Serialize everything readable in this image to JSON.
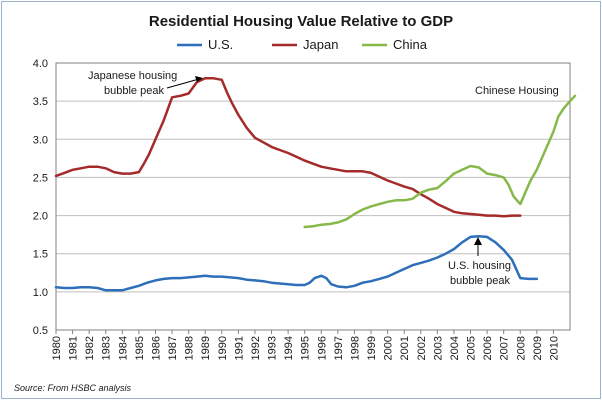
{
  "chart_data": {
    "type": "line",
    "title": "Residential Housing Value Relative to GDP",
    "xlabel": "",
    "ylabel": "",
    "xlim": [
      1980,
      2011
    ],
    "ylim": [
      0.5,
      4.0
    ],
    "x_ticks": [
      "1980",
      "1981",
      "1982",
      "1983",
      "1984",
      "1985",
      "1986",
      "1987",
      "1988",
      "1989",
      "1990",
      "1991",
      "1992",
      "1993",
      "1994",
      "1995",
      "1996",
      "1997",
      "1998",
      "1999",
      "2000",
      "2001",
      "2002",
      "2003",
      "2004",
      "2005",
      "2006",
      "2007",
      "2008",
      "2009",
      "2010"
    ],
    "y_ticks": [
      "0.5",
      "1.0",
      "1.5",
      "2.0",
      "2.5",
      "3.0",
      "3.5",
      "4.0"
    ],
    "legend_position": "top-center",
    "grid": "horizontal",
    "series": [
      {
        "name": "U.S.",
        "color": "#2e6fba",
        "points": [
          [
            1980.0,
            1.06
          ],
          [
            1980.5,
            1.05
          ],
          [
            1981.0,
            1.05
          ],
          [
            1981.5,
            1.06
          ],
          [
            1982.0,
            1.06
          ],
          [
            1982.5,
            1.05
          ],
          [
            1983.0,
            1.02
          ],
          [
            1983.5,
            1.02
          ],
          [
            1984.0,
            1.02
          ],
          [
            1984.5,
            1.05
          ],
          [
            1985.0,
            1.08
          ],
          [
            1985.5,
            1.12
          ],
          [
            1986.0,
            1.15
          ],
          [
            1986.5,
            1.17
          ],
          [
            1987.0,
            1.18
          ],
          [
            1987.5,
            1.18
          ],
          [
            1988.0,
            1.19
          ],
          [
            1988.5,
            1.2
          ],
          [
            1989.0,
            1.21
          ],
          [
            1989.5,
            1.2
          ],
          [
            1990.0,
            1.2
          ],
          [
            1990.5,
            1.19
          ],
          [
            1991.0,
            1.18
          ],
          [
            1991.5,
            1.16
          ],
          [
            1992.0,
            1.15
          ],
          [
            1992.5,
            1.14
          ],
          [
            1993.0,
            1.12
          ],
          [
            1993.5,
            1.11
          ],
          [
            1994.0,
            1.1
          ],
          [
            1994.5,
            1.09
          ],
          [
            1995.0,
            1.09
          ],
          [
            1995.3,
            1.12
          ],
          [
            1995.6,
            1.18
          ],
          [
            1996.0,
            1.21
          ],
          [
            1996.3,
            1.18
          ],
          [
            1996.6,
            1.1
          ],
          [
            1997.0,
            1.07
          ],
          [
            1997.5,
            1.06
          ],
          [
            1998.0,
            1.08
          ],
          [
            1998.5,
            1.12
          ],
          [
            1999.0,
            1.14
          ],
          [
            1999.5,
            1.17
          ],
          [
            2000.0,
            1.2
          ],
          [
            2000.5,
            1.25
          ],
          [
            2001.0,
            1.3
          ],
          [
            2001.5,
            1.35
          ],
          [
            2002.0,
            1.38
          ],
          [
            2002.5,
            1.41
          ],
          [
            2003.0,
            1.45
          ],
          [
            2003.5,
            1.5
          ],
          [
            2004.0,
            1.56
          ],
          [
            2004.5,
            1.65
          ],
          [
            2005.0,
            1.72
          ],
          [
            2005.5,
            1.73
          ],
          [
            2006.0,
            1.72
          ],
          [
            2006.5,
            1.65
          ],
          [
            2007.0,
            1.55
          ],
          [
            2007.5,
            1.42
          ],
          [
            2008.0,
            1.18
          ],
          [
            2008.5,
            1.17
          ],
          [
            2009.0,
            1.17
          ]
        ]
      },
      {
        "name": "Japan",
        "color": "#a52a2a",
        "points": [
          [
            1980.0,
            2.52
          ],
          [
            1980.5,
            2.56
          ],
          [
            1981.0,
            2.6
          ],
          [
            1981.5,
            2.62
          ],
          [
            1982.0,
            2.64
          ],
          [
            1982.5,
            2.64
          ],
          [
            1983.0,
            2.62
          ],
          [
            1983.5,
            2.57
          ],
          [
            1984.0,
            2.55
          ],
          [
            1984.5,
            2.55
          ],
          [
            1985.0,
            2.57
          ],
          [
            1985.3,
            2.68
          ],
          [
            1985.6,
            2.8
          ],
          [
            1986.0,
            3.0
          ],
          [
            1986.5,
            3.25
          ],
          [
            1987.0,
            3.55
          ],
          [
            1987.5,
            3.57
          ],
          [
            1988.0,
            3.6
          ],
          [
            1988.5,
            3.75
          ],
          [
            1989.0,
            3.8
          ],
          [
            1989.5,
            3.8
          ],
          [
            1990.0,
            3.78
          ],
          [
            1990.3,
            3.62
          ],
          [
            1990.6,
            3.48
          ],
          [
            1991.0,
            3.32
          ],
          [
            1991.5,
            3.15
          ],
          [
            1992.0,
            3.02
          ],
          [
            1992.5,
            2.96
          ],
          [
            1993.0,
            2.9
          ],
          [
            1993.5,
            2.86
          ],
          [
            1994.0,
            2.82
          ],
          [
            1994.5,
            2.77
          ],
          [
            1995.0,
            2.72
          ],
          [
            1995.5,
            2.68
          ],
          [
            1996.0,
            2.64
          ],
          [
            1996.5,
            2.62
          ],
          [
            1997.0,
            2.6
          ],
          [
            1997.5,
            2.58
          ],
          [
            1998.0,
            2.58
          ],
          [
            1998.5,
            2.58
          ],
          [
            1999.0,
            2.56
          ],
          [
            1999.5,
            2.51
          ],
          [
            2000.0,
            2.46
          ],
          [
            2000.5,
            2.42
          ],
          [
            2001.0,
            2.38
          ],
          [
            2001.5,
            2.35
          ],
          [
            2002.0,
            2.28
          ],
          [
            2002.5,
            2.22
          ],
          [
            2003.0,
            2.15
          ],
          [
            2003.5,
            2.1
          ],
          [
            2004.0,
            2.05
          ],
          [
            2004.5,
            2.03
          ],
          [
            2005.0,
            2.02
          ],
          [
            2005.5,
            2.01
          ],
          [
            2006.0,
            2.0
          ],
          [
            2006.5,
            2.0
          ],
          [
            2007.0,
            1.99
          ],
          [
            2007.5,
            2.0
          ],
          [
            2008.0,
            2.0
          ]
        ]
      },
      {
        "name": "China",
        "color": "#86b84a",
        "points": [
          [
            1995.0,
            1.85
          ],
          [
            1995.5,
            1.86
          ],
          [
            1996.0,
            1.88
          ],
          [
            1996.5,
            1.89
          ],
          [
            1997.0,
            1.91
          ],
          [
            1997.5,
            1.95
          ],
          [
            1998.0,
            2.02
          ],
          [
            1998.5,
            2.08
          ],
          [
            1999.0,
            2.12
          ],
          [
            1999.5,
            2.15
          ],
          [
            2000.0,
            2.18
          ],
          [
            2000.5,
            2.2
          ],
          [
            2001.0,
            2.2
          ],
          [
            2001.5,
            2.22
          ],
          [
            2002.0,
            2.3
          ],
          [
            2002.5,
            2.34
          ],
          [
            2003.0,
            2.36
          ],
          [
            2003.5,
            2.45
          ],
          [
            2004.0,
            2.55
          ],
          [
            2004.5,
            2.6
          ],
          [
            2005.0,
            2.65
          ],
          [
            2005.5,
            2.63
          ],
          [
            2006.0,
            2.55
          ],
          [
            2006.5,
            2.53
          ],
          [
            2007.0,
            2.5
          ],
          [
            2007.3,
            2.4
          ],
          [
            2007.6,
            2.25
          ],
          [
            2008.0,
            2.15
          ],
          [
            2008.3,
            2.3
          ],
          [
            2008.6,
            2.45
          ],
          [
            2009.0,
            2.6
          ],
          [
            2009.5,
            2.85
          ],
          [
            2010.0,
            3.1
          ],
          [
            2010.3,
            3.3
          ],
          [
            2010.6,
            3.4
          ],
          [
            2011.0,
            3.5
          ],
          [
            2011.3,
            3.57
          ]
        ]
      }
    ],
    "annotations": [
      {
        "id": "japan-peak",
        "lines": [
          "Japanese housing",
          "bubble peak"
        ]
      },
      {
        "id": "us-peak",
        "lines": [
          "U.S. housing",
          "bubble peak"
        ]
      },
      {
        "id": "china-label",
        "lines": [
          "Chinese Housing"
        ]
      }
    ],
    "source": "Source: From HSBC analysis"
  }
}
